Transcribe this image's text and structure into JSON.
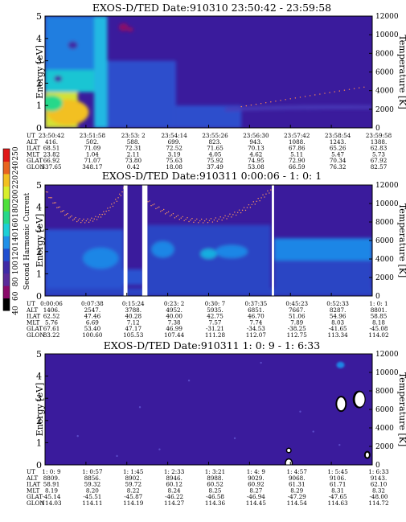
{
  "chart_data": [
    {
      "type": "heatmap",
      "title": "EXOS-D/TED   Date:910310  23:50:42 - 23:59:58",
      "ylabel": "Energy [eV]",
      "y2label": "Temperature [K]",
      "ylim": [
        0,
        5
      ],
      "y2lim": [
        0,
        12000
      ],
      "yticks": [
        "0",
        "1",
        "2",
        "3",
        "4",
        "5"
      ],
      "y2ticks": [
        "0",
        "2000",
        "4000",
        "6000",
        "8000",
        "10000",
        "12000"
      ],
      "background": "#3a1b9c",
      "features": [
        {
          "x0": 0,
          "x1": 0.1,
          "e0": 0,
          "e1": 1.6,
          "color": "#e0f22c"
        },
        {
          "x0": 0,
          "x1": 0.15,
          "e0": 1.6,
          "e1": 2.6,
          "color": "#18d4d8"
        },
        {
          "x0": 0,
          "x1": 0.19,
          "e0": 2.6,
          "e1": 5,
          "color": "#1e86e6"
        },
        {
          "x0": 0.19,
          "x1": 0.4,
          "e0": 0,
          "e1": 3.0,
          "color": "#2a52d0"
        },
        {
          "x0": 0.4,
          "x1": 0.6,
          "e0": 0,
          "e1": 1.0,
          "color": "#2a52d0"
        }
      ],
      "ephemeris": {
        "UT": [
          "23:50:42",
          "23:51:58",
          "23:53: 2",
          "23:54:14",
          "23:55:26",
          "23:56:30",
          "23:57:42",
          "23:58:54",
          "23:59:58"
        ],
        "ALT": [
          "416.",
          "502.",
          "588.",
          "699.",
          "823.",
          "943.",
          "1088.",
          "1243.",
          "1388."
        ],
        "ILAT": [
          "68.51",
          "71.09",
          "72.31",
          "72.52",
          "71.65",
          "70.13",
          "67.86",
          "65.26",
          "62.83"
        ],
        "MLT": [
          "23.82",
          "1.04",
          "2.11",
          "3.19",
          "4.05",
          "4.62",
          "5.11",
          "5.47",
          "5.73"
        ],
        "GLAT": [
          "66.92",
          "71.07",
          "73.80",
          "75.63",
          "75.92",
          "74.95",
          "72.90",
          "70.34",
          "67.92"
        ],
        "GLON": [
          "337.65",
          "348.17",
          "0.42",
          "18.08",
          "37.49",
          "53.08",
          "66.59",
          "76.32",
          "82.57"
        ]
      }
    },
    {
      "type": "heatmap",
      "title": "EXOS-D/TED   Date:910311  0:00:06 - 1: 0: 1",
      "ylabel": "Energy [eV]",
      "y2label": "Temperature [K]",
      "ylim": [
        0,
        5
      ],
      "y2lim": [
        0,
        12000
      ],
      "yticks": [
        "0",
        "1",
        "2",
        "3",
        "4",
        "5"
      ],
      "y2ticks": [
        "0",
        "2000",
        "4000",
        "6000",
        "8000",
        "10000",
        "12000"
      ],
      "background": "#3a1b9c",
      "data_gaps_fraction": [
        [
          0.24,
          0.252
        ],
        [
          0.297,
          0.313
        ],
        [
          0.693,
          0.7
        ]
      ],
      "ephemeris": {
        "UT": [
          "0:00:06",
          "0:07:38",
          "0:15:24",
          "0:23: 2",
          "0:30: 7",
          "0:37:35",
          "0:45:23",
          "0:52:33",
          "1: 0: 1"
        ],
        "ALT": [
          "1406.",
          "2547.",
          "3788.",
          "4952.",
          "5935.",
          "6851.",
          "7667.",
          "8287.",
          "8801."
        ],
        "ILAT": [
          "62.52",
          "47.46",
          "40.28",
          "40.00",
          "42.75",
          "46.70",
          "51.06",
          "54.96",
          "58.85"
        ],
        "MLT": [
          "5.76",
          "6.69",
          "7.12",
          "7.38",
          "7.57",
          "7.74",
          "7.89",
          "8.03",
          "8.18"
        ],
        "GLAT": [
          "67.61",
          "53.40",
          "47.17",
          "46.99",
          "-31.21",
          "-34.53",
          "-38.25",
          "-41.65",
          "-45.08"
        ],
        "GLON": [
          "83.22",
          "100.60",
          "105.53",
          "107.44",
          "111.28",
          "112.07",
          "112.75",
          "113.34",
          "114.02"
        ]
      }
    },
    {
      "type": "heatmap",
      "title": "EXOS-D/TED   Date:910311  1: 0: 9 - 1: 6:33",
      "ylabel": "Energy [eV]",
      "y2label": "Temperature [K]",
      "ylim": [
        0,
        5
      ],
      "y2lim": [
        0,
        12000
      ],
      "yticks": [
        "0",
        "1",
        "2",
        "3",
        "4",
        "5"
      ],
      "y2ticks": [
        "0",
        "2000",
        "4000",
        "6000",
        "8000",
        "10000",
        "12000"
      ],
      "background": "#3a1b9c",
      "ephemeris": {
        "UT": [
          "1: 0: 9",
          "1: 0:57",
          "1: 1:45",
          "1: 2:33",
          "1: 3:21",
          "1: 4: 9",
          "1: 4:57",
          "1: 5:45",
          "1: 6:33"
        ],
        "ALT": [
          "8809.",
          "8856.",
          "8902.",
          "8946.",
          "8988.",
          "9029.",
          "9068.",
          "9106.",
          "9143."
        ],
        "ILAT": [
          "58.91",
          "59.32",
          "59.72",
          "60.12",
          "60.52",
          "60.92",
          "61.31",
          "61.71",
          "62.10"
        ],
        "MLT": [
          "8.19",
          "8.20",
          "8.22",
          "8.24",
          "8.25",
          "8.27",
          "8.29",
          "8.31",
          "8.32"
        ],
        "GLAT": [
          "-45.14",
          "-45.51",
          "-45.87",
          "-46.22",
          "-46.58",
          "-46.94",
          "-47.29",
          "-47.65",
          "-48.00"
        ],
        "GLON": [
          "114.03",
          "114.11",
          "114.19",
          "114.27",
          "114.36",
          "114.45",
          "114.54",
          "114.63",
          "114.72"
        ]
      }
    }
  ],
  "colorbar": {
    "label": "Second Harmonic Current",
    "ticks": [
      "40",
      "60",
      "80",
      "100",
      "120",
      "140",
      "160",
      "180",
      "200",
      "220",
      "240",
      "250"
    ],
    "colors": [
      "#000000",
      "#8a0a6a",
      "#5a2a9a",
      "#3f2aa6",
      "#1f4fd0",
      "#1f90e8",
      "#1ccfd6",
      "#26d88a",
      "#4ee03a",
      "#d8ee2a",
      "#f2c020",
      "#e86420",
      "#e01818"
    ]
  },
  "ephemeris_labels": [
    "UT",
    "ALT",
    "ILAT",
    "MLT",
    "GLAT",
    "GLON"
  ]
}
